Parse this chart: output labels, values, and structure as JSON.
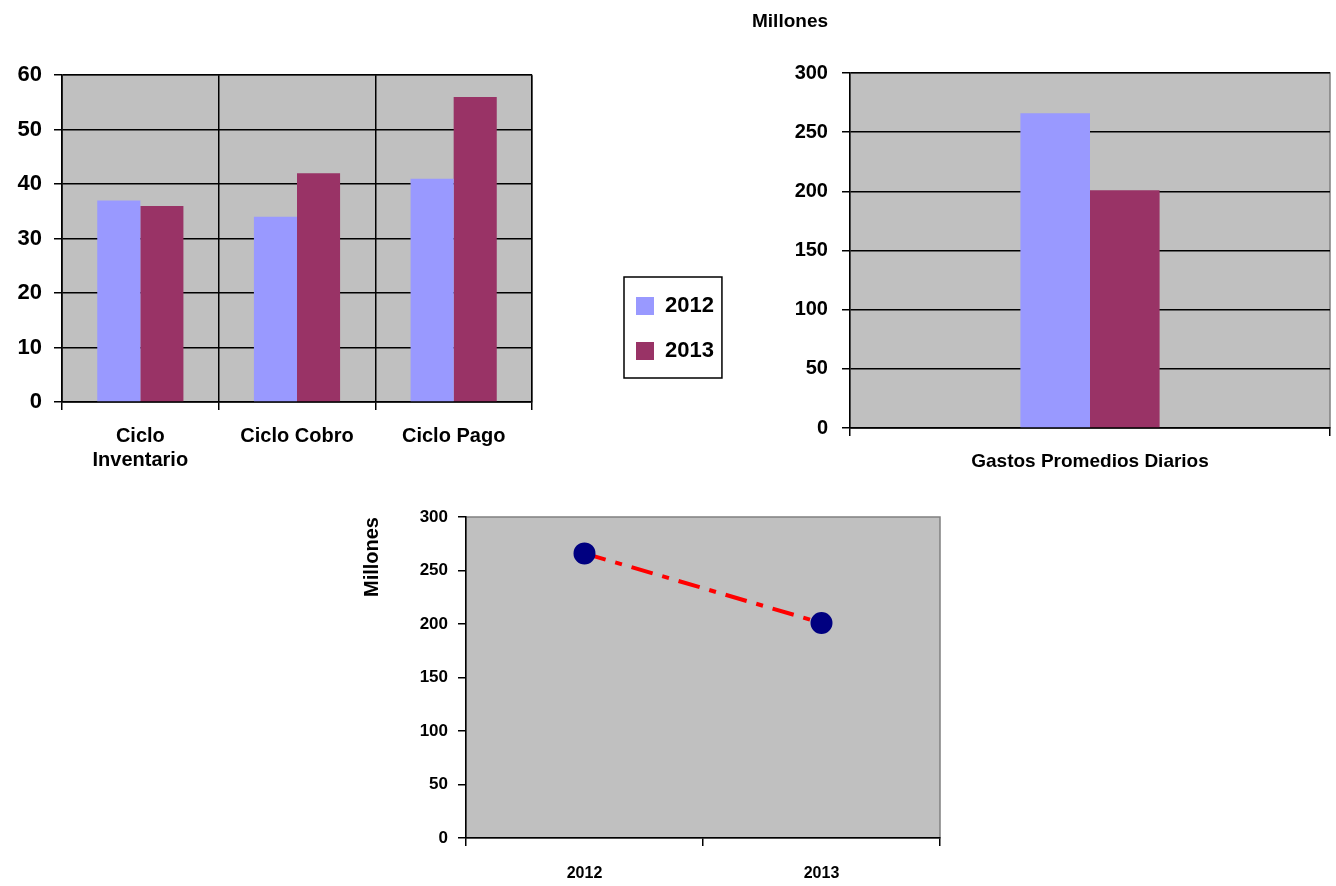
{
  "chart_data": [
    {
      "type": "bar",
      "categories": [
        "Ciclo Inventario",
        "Ciclo Cobro",
        "Ciclo Pago"
      ],
      "series": [
        {
          "name": "2012",
          "color": "#9999ff",
          "values": [
            37,
            34,
            41
          ]
        },
        {
          "name": "2013",
          "color": "#993366",
          "values": [
            36,
            42,
            56
          ]
        }
      ],
      "ylim": [
        0,
        60
      ],
      "yticks": [
        0,
        10,
        20,
        30,
        40,
        50,
        60
      ],
      "grid": true,
      "legend": "right"
    },
    {
      "type": "bar",
      "ylabel": "Millones",
      "categories": [
        "Gastos Promedios Diarios"
      ],
      "series": [
        {
          "color": "#9999ff",
          "values": [
            266
          ]
        },
        {
          "color": "#993366",
          "values": [
            201
          ]
        }
      ],
      "ylim": [
        0,
        300
      ],
      "yticks": [
        0,
        50,
        100,
        150,
        200,
        250,
        300
      ],
      "grid": "y"
    },
    {
      "type": "line",
      "ylabel": "Millones",
      "categories": [
        "2012",
        "2013"
      ],
      "series": [
        {
          "color": "#ff0000",
          "colors": [
            "#000080",
            "#000080"
          ],
          "values": [
            266,
            201
          ]
        }
      ],
      "ylim": [
        0,
        300
      ],
      "yticks": [
        0,
        50,
        100,
        150,
        200,
        250,
        300
      ],
      "marker": "circle",
      "line_style": "dashed"
    }
  ]
}
